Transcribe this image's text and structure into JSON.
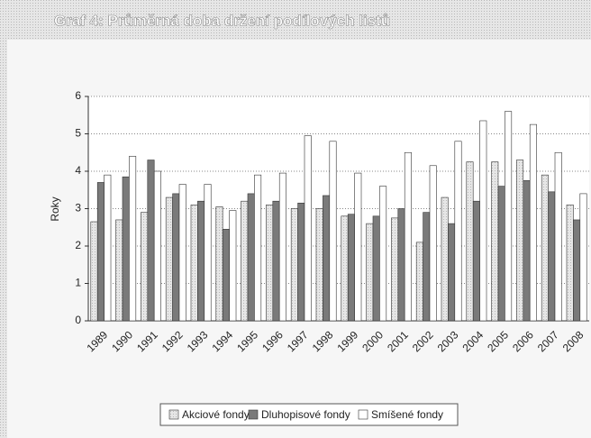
{
  "chart_data": {
    "type": "bar",
    "title": "Graf 4: Průměrná doba držení podílových listů",
    "y_label": "Roky",
    "categories": [
      "1989",
      "1990",
      "1991",
      "1992",
      "1993",
      "1994",
      "1995",
      "1996",
      "1997",
      "1998",
      "1999",
      "2000",
      "2001",
      "2002",
      "2003",
      "2004",
      "2005",
      "2006",
      "2007",
      "2008"
    ],
    "series": [
      {
        "name": "Akciové fondy",
        "color": "#cfcfcf",
        "values": [
          2.65,
          2.7,
          2.9,
          3.3,
          3.1,
          3.05,
          3.2,
          3.1,
          3.0,
          3.0,
          2.8,
          2.6,
          2.75,
          2.1,
          3.3,
          4.25,
          4.25,
          4.3,
          3.9,
          3.1
        ]
      },
      {
        "name": "Dluhopisové fondy",
        "color": "#7a7a7a",
        "values": [
          3.7,
          3.85,
          4.3,
          3.4,
          3.2,
          2.45,
          3.4,
          3.2,
          3.15,
          3.35,
          2.85,
          2.8,
          3.0,
          2.9,
          2.6,
          3.2,
          3.6,
          3.75,
          3.45,
          2.7
        ]
      },
      {
        "name": "Smíšené fondy",
        "color": "#ffffff",
        "values": [
          3.9,
          4.4,
          4.0,
          3.65,
          3.65,
          2.95,
          3.9,
          3.95,
          4.95,
          4.8,
          3.95,
          3.6,
          4.5,
          4.15,
          4.8,
          5.35,
          5.6,
          5.25,
          4.5,
          3.4
        ]
      }
    ],
    "ylim": [
      0,
      6
    ],
    "yticks": [
      0,
      1,
      2,
      3,
      4,
      5,
      6
    ],
    "grid": true,
    "legend": "bottom"
  }
}
